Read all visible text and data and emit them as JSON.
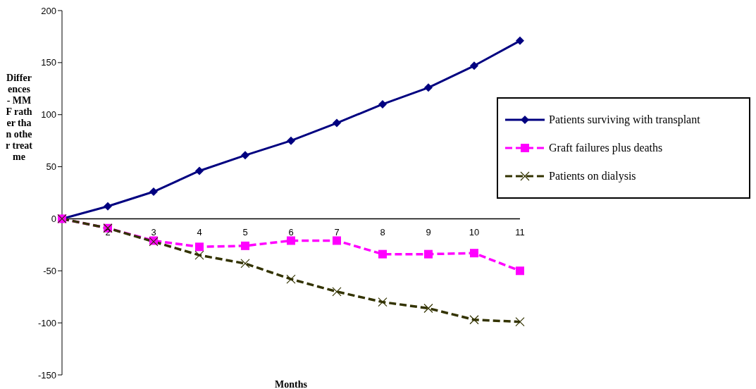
{
  "chart_data": {
    "type": "line",
    "xlabel": "Months",
    "ylabel": "Differences - MMF rather than other treatme",
    "categories": [
      null,
      "2",
      "3",
      "4",
      "5",
      "6",
      "7",
      "8",
      "9",
      "10",
      "11"
    ],
    "series": [
      {
        "name": "Patients surviving with transplant",
        "color": "#000080",
        "marker": "diamond",
        "line_style": "solid",
        "values": [
          0,
          12,
          26,
          46,
          61,
          75,
          92,
          110,
          126,
          147,
          171
        ]
      },
      {
        "name": "Graft failures plus deaths",
        "color": "#ff00ff",
        "marker": "square",
        "line_style": "dashed",
        "values": [
          0,
          -9,
          -21,
          -27,
          -26,
          -21,
          -21,
          -34,
          -34,
          -33,
          -50
        ]
      },
      {
        "name": "Patients on dialysis",
        "color": "#333300",
        "marker": "cross",
        "line_style": "dashed",
        "values": [
          0,
          -9,
          -22,
          -35,
          -43,
          -58,
          -70,
          -80,
          -86,
          -97,
          -99
        ]
      }
    ],
    "ylim": [
      -150,
      200
    ],
    "yticks": [
      -150,
      -100,
      -50,
      0,
      50,
      100,
      150,
      200
    ],
    "grid": false,
    "legend": "right"
  }
}
